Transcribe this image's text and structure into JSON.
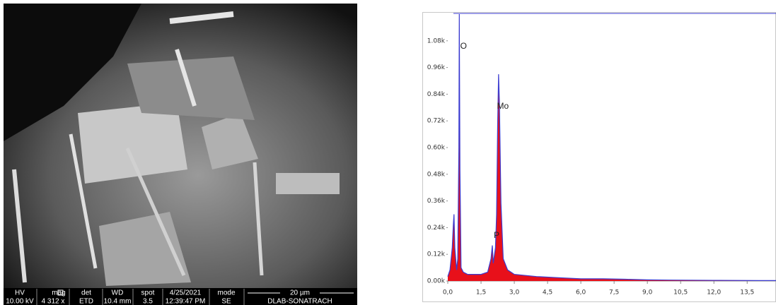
{
  "sem_image": {
    "headers": [
      "HV",
      "mag",
      "det",
      "WD",
      "spot",
      "4/25/2021",
      "mode"
    ],
    "values": [
      "10.00 kV",
      "4 312 x",
      "ETD",
      "10.4 mm",
      "3.5",
      "12:39:47 PM",
      "SE"
    ],
    "scale_bar": "20 µm",
    "lab": "DLAB-SONATRACH"
  },
  "chart_data": {
    "type": "area",
    "x": [
      0.0,
      0.1,
      0.2,
      0.25,
      0.28,
      0.32,
      0.4,
      0.45,
      0.5,
      0.52,
      0.55,
      0.6,
      0.7,
      0.9,
      1.2,
      1.5,
      1.8,
      1.95,
      2.01,
      2.05,
      2.15,
      2.2,
      2.25,
      2.29,
      2.33,
      2.4,
      2.5,
      2.7,
      3.0,
      4.0,
      5.0,
      6.0,
      7.0,
      8.0,
      9.0,
      10.0,
      12.0,
      14.0,
      14.8
    ],
    "series": [
      {
        "color": "#3b3bd0",
        "fill": "#e8101a",
        "values": [
          0.02,
          0.05,
          0.15,
          0.25,
          0.3,
          0.15,
          0.05,
          0.1,
          0.6,
          1.2,
          0.5,
          0.06,
          0.04,
          0.03,
          0.03,
          0.03,
          0.04,
          0.1,
          0.16,
          0.08,
          0.15,
          0.3,
          0.7,
          0.93,
          0.8,
          0.35,
          0.1,
          0.05,
          0.03,
          0.02,
          0.015,
          0.01,
          0.01,
          0.008,
          0.005,
          0.004,
          0.003,
          0.002,
          0.002
        ]
      }
    ],
    "annotations": [
      {
        "text": "O",
        "x": 0.52
      },
      {
        "text": "Mo",
        "x": 2.29
      },
      {
        "text": "P",
        "x": 2.01
      }
    ],
    "xlim": [
      0,
      14.8
    ],
    "ylim": [
      0,
      1.2
    ],
    "xticks": [
      {
        "value": 0,
        "label": "0,0"
      },
      {
        "value": 1.5,
        "label": "1,5"
      },
      {
        "value": 3,
        "label": "3,0"
      },
      {
        "value": 4.5,
        "label": "4,5"
      },
      {
        "value": 6,
        "label": "6,0"
      },
      {
        "value": 7.5,
        "label": "7,5"
      },
      {
        "value": 9,
        "label": "9,0"
      },
      {
        "value": 10.5,
        "label": "10,5"
      },
      {
        "value": 12,
        "label": "12,0"
      },
      {
        "value": 13.5,
        "label": "13,5"
      }
    ],
    "yticks": [
      {
        "value": 0,
        "label": "0.00k"
      },
      {
        "value": 0.12,
        "label": "0.12k"
      },
      {
        "value": 0.24,
        "label": "0.24k"
      },
      {
        "value": 0.36,
        "label": "0.36k"
      },
      {
        "value": 0.48,
        "label": "0.48k"
      },
      {
        "value": 0.6,
        "label": "0.60k"
      },
      {
        "value": 0.72,
        "label": "0.72k"
      },
      {
        "value": 0.84,
        "label": "0.84k"
      },
      {
        "value": 0.96,
        "label": "0.96k"
      },
      {
        "value": 1.08,
        "label": "1.08k"
      }
    ]
  }
}
